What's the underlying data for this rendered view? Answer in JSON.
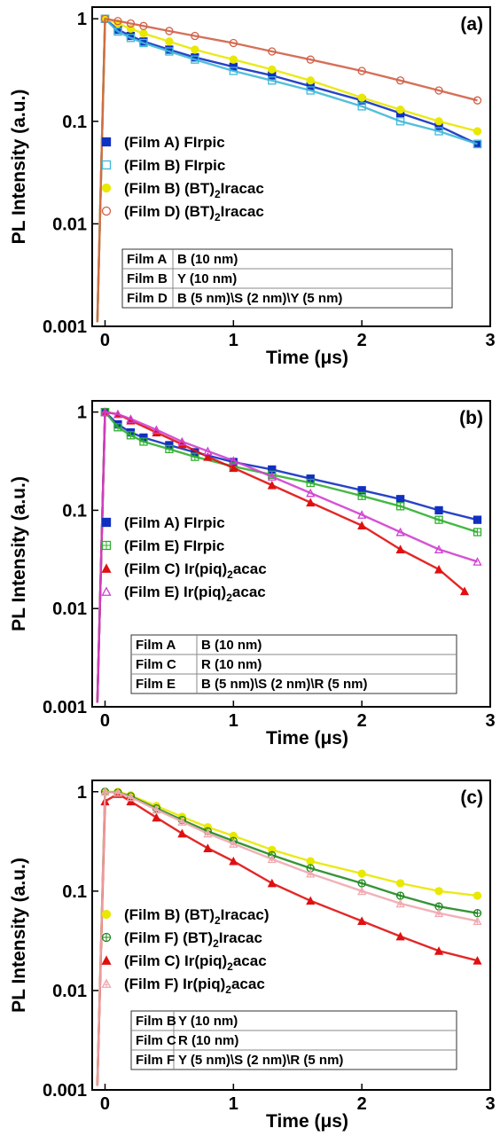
{
  "chart_data": [
    {
      "type": "scatter",
      "panel_label": "(a)",
      "xlabel": "Time (μs)",
      "ylabel": "PL Intensity (a.u.)",
      "xlim": [
        -0.1,
        3.0
      ],
      "ylim": [
        0.001,
        1.3
      ],
      "yscale": "log",
      "xticks": [
        0,
        1,
        2,
        3
      ],
      "xtick_labels": [
        "0",
        "1",
        "2",
        "3"
      ],
      "yticks": [
        1,
        0.1,
        0.01,
        0.001
      ],
      "ytick_labels": [
        "1",
        "0.1",
        "0.01",
        "0.001"
      ],
      "legend": [
        {
          "parts": [
            {
              "t": "(Film A) FIrpic"
            }
          ],
          "color": "#1030c0",
          "marker": "square-filled"
        },
        {
          "parts": [
            {
              "t": "(Film B) FIrpic"
            }
          ],
          "color": "#40b8d8",
          "marker": "square-open"
        },
        {
          "parts": [
            {
              "t": "(Film B) (BT)"
            },
            {
              "t": "2",
              "sub": true
            },
            {
              "t": "Iracac"
            }
          ],
          "color": "#e8e800",
          "marker": "circle-filled"
        },
        {
          "parts": [
            {
              "t": "(Film D) (BT)"
            },
            {
              "t": "2",
              "sub": true
            },
            {
              "t": "Iracac"
            }
          ],
          "color": "#d06048",
          "marker": "circle-open"
        }
      ],
      "table": [
        [
          "Film A",
          "B (10 nm)"
        ],
        [
          "Film B",
          "Y (10 nm)"
        ],
        [
          "Film D",
          "B (5 nm)\\S (2 nm)\\Y (5 nm)"
        ]
      ],
      "series": [
        {
          "marker": "square-filled",
          "color": "#1030c0",
          "x": [
            0.0,
            0.1,
            0.2,
            0.3,
            0.5,
            0.7,
            1.0,
            1.3,
            1.6,
            2.0,
            2.3,
            2.6,
            2.9
          ],
          "values": [
            1.0,
            0.78,
            0.68,
            0.6,
            0.5,
            0.42,
            0.34,
            0.28,
            0.22,
            0.16,
            0.12,
            0.09,
            0.06
          ]
        },
        {
          "marker": "square-open",
          "color": "#40b8d8",
          "x": [
            0.0,
            0.1,
            0.2,
            0.3,
            0.5,
            0.7,
            1.0,
            1.3,
            1.6,
            2.0,
            2.3,
            2.6,
            2.9
          ],
          "values": [
            1.0,
            0.75,
            0.65,
            0.58,
            0.48,
            0.4,
            0.31,
            0.25,
            0.2,
            0.14,
            0.1,
            0.08,
            0.06
          ]
        },
        {
          "marker": "circle-filled",
          "color": "#e8e800",
          "x": [
            0.0,
            0.1,
            0.2,
            0.3,
            0.5,
            0.7,
            1.0,
            1.3,
            1.6,
            2.0,
            2.3,
            2.6,
            2.9
          ],
          "values": [
            1.0,
            0.9,
            0.8,
            0.72,
            0.6,
            0.5,
            0.4,
            0.32,
            0.25,
            0.17,
            0.13,
            0.1,
            0.08
          ]
        },
        {
          "marker": "circle-open",
          "color": "#d06048",
          "x": [
            0.0,
            0.1,
            0.2,
            0.3,
            0.5,
            0.7,
            1.0,
            1.3,
            1.6,
            2.0,
            2.3,
            2.6,
            2.9
          ],
          "values": [
            1.0,
            0.95,
            0.9,
            0.85,
            0.76,
            0.68,
            0.58,
            0.48,
            0.4,
            0.31,
            0.25,
            0.2,
            0.16
          ]
        }
      ]
    },
    {
      "type": "scatter",
      "panel_label": "(b)",
      "xlabel": "Time (μs)",
      "ylabel": "PL Intensity (a.u.)",
      "xlim": [
        -0.1,
        3.0
      ],
      "ylim": [
        0.001,
        1.3
      ],
      "yscale": "log",
      "xticks": [
        0,
        1,
        2,
        3
      ],
      "xtick_labels": [
        "0",
        "1",
        "2",
        "3"
      ],
      "yticks": [
        1,
        0.1,
        0.01,
        0.001
      ],
      "ytick_labels": [
        "1",
        "0.1",
        "0.01",
        "0.001"
      ],
      "legend": [
        {
          "parts": [
            {
              "t": "(Film A) FIrpic"
            }
          ],
          "color": "#1030c0",
          "marker": "square-filled"
        },
        {
          "parts": [
            {
              "t": "(Film E) FIrpic"
            }
          ],
          "color": "#30b030",
          "marker": "square-crossed"
        },
        {
          "parts": [
            {
              "t": "(Film C) Ir(piq)"
            },
            {
              "t": "2",
              "sub": true
            },
            {
              "t": "acac"
            }
          ],
          "color": "#e01010",
          "marker": "triangle-filled"
        },
        {
          "parts": [
            {
              "t": "(Film E) Ir(piq)"
            },
            {
              "t": "2",
              "sub": true
            },
            {
              "t": "acac"
            }
          ],
          "color": "#d040d0",
          "marker": "triangle-open"
        }
      ],
      "table": [
        [
          "Film A",
          "B (10 nm)"
        ],
        [
          "Film C",
          "R (10 nm)"
        ],
        [
          "Film E",
          "B (5 nm)\\S (2 nm)\\R (5 nm)"
        ]
      ],
      "series": [
        {
          "marker": "square-filled",
          "color": "#1030c0",
          "x": [
            0.0,
            0.1,
            0.2,
            0.3,
            0.5,
            0.7,
            1.0,
            1.3,
            1.6,
            2.0,
            2.3,
            2.6,
            2.9
          ],
          "values": [
            1.0,
            0.75,
            0.62,
            0.55,
            0.46,
            0.39,
            0.31,
            0.26,
            0.21,
            0.16,
            0.13,
            0.1,
            0.08
          ]
        },
        {
          "marker": "square-crossed",
          "color": "#30b030",
          "x": [
            0.0,
            0.1,
            0.2,
            0.3,
            0.5,
            0.7,
            1.0,
            1.3,
            1.6,
            2.0,
            2.3,
            2.6,
            2.9
          ],
          "values": [
            1.0,
            0.7,
            0.58,
            0.5,
            0.42,
            0.35,
            0.28,
            0.23,
            0.19,
            0.14,
            0.11,
            0.08,
            0.06
          ]
        },
        {
          "marker": "triangle-filled",
          "color": "#e01010",
          "x": [
            0.0,
            0.1,
            0.2,
            0.4,
            0.6,
            0.8,
            1.0,
            1.3,
            1.6,
            2.0,
            2.3,
            2.6,
            2.8
          ],
          "values": [
            1.0,
            0.95,
            0.82,
            0.62,
            0.47,
            0.35,
            0.27,
            0.18,
            0.12,
            0.07,
            0.04,
            0.025,
            0.015
          ]
        },
        {
          "marker": "triangle-open",
          "color": "#d040d0",
          "x": [
            0.0,
            0.1,
            0.2,
            0.4,
            0.6,
            0.8,
            1.0,
            1.3,
            1.6,
            2.0,
            2.3,
            2.6,
            2.9
          ],
          "values": [
            1.0,
            0.95,
            0.85,
            0.66,
            0.5,
            0.4,
            0.32,
            0.22,
            0.15,
            0.09,
            0.06,
            0.04,
            0.03
          ]
        }
      ]
    },
    {
      "type": "scatter",
      "panel_label": "(c)",
      "xlabel": "Time (μs)",
      "ylabel": "PL Intensity (a.u.)",
      "xlim": [
        -0.1,
        3.0
      ],
      "ylim": [
        0.001,
        1.3
      ],
      "yscale": "log",
      "xticks": [
        0,
        1,
        2,
        3
      ],
      "xtick_labels": [
        "0",
        "1",
        "2",
        "3"
      ],
      "yticks": [
        1,
        0.1,
        0.01,
        0.001
      ],
      "ytick_labels": [
        "1",
        "0.1",
        "0.01",
        "0.001"
      ],
      "legend": [
        {
          "parts": [
            {
              "t": "(Film B) (BT)"
            },
            {
              "t": "2",
              "sub": true
            },
            {
              "t": "Iracac)"
            }
          ],
          "color": "#e8e800",
          "marker": "circle-filled"
        },
        {
          "parts": [
            {
              "t": "(Film F) (BT)"
            },
            {
              "t": "2",
              "sub": true
            },
            {
              "t": "Iracac"
            }
          ],
          "color": "#208820",
          "marker": "circle-crossed"
        },
        {
          "parts": [
            {
              "t": "(Film C) Ir(piq)"
            },
            {
              "t": "2",
              "sub": true
            },
            {
              "t": "acac"
            }
          ],
          "color": "#e01010",
          "marker": "triangle-filled"
        },
        {
          "parts": [
            {
              "t": "(Film F)  Ir(piq)"
            },
            {
              "t": "2",
              "sub": true
            },
            {
              "t": "acac"
            }
          ],
          "color": "#f0a8b0",
          "marker": "triangle-crossed"
        }
      ],
      "table": [
        [
          "Film B",
          "Y (10 nm)"
        ],
        [
          "Film C",
          "R (10 nm)"
        ],
        [
          "Film F",
          "Y (5 nm)\\S (2 nm)\\R (5 nm)"
        ]
      ],
      "series": [
        {
          "marker": "circle-filled",
          "color": "#e8e800",
          "x": [
            0.0,
            0.1,
            0.2,
            0.4,
            0.6,
            0.8,
            1.0,
            1.3,
            1.6,
            2.0,
            2.3,
            2.6,
            2.9
          ],
          "values": [
            1.0,
            1.0,
            0.92,
            0.72,
            0.56,
            0.44,
            0.36,
            0.26,
            0.2,
            0.15,
            0.12,
            0.1,
            0.09
          ]
        },
        {
          "marker": "circle-crossed",
          "color": "#208820",
          "x": [
            0.0,
            0.1,
            0.2,
            0.4,
            0.6,
            0.8,
            1.0,
            1.3,
            1.6,
            2.0,
            2.3,
            2.6,
            2.9
          ],
          "values": [
            1.0,
            0.98,
            0.9,
            0.68,
            0.52,
            0.4,
            0.32,
            0.23,
            0.17,
            0.12,
            0.09,
            0.07,
            0.06
          ]
        },
        {
          "marker": "triangle-filled",
          "color": "#e01010",
          "x": [
            0.0,
            0.1,
            0.2,
            0.4,
            0.6,
            0.8,
            1.0,
            1.3,
            1.6,
            2.0,
            2.3,
            2.6,
            2.9
          ],
          "values": [
            0.8,
            0.95,
            0.8,
            0.55,
            0.38,
            0.27,
            0.2,
            0.12,
            0.08,
            0.05,
            0.035,
            0.025,
            0.02
          ]
        },
        {
          "marker": "triangle-crossed",
          "color": "#f0a8b0",
          "x": [
            0.0,
            0.1,
            0.2,
            0.4,
            0.6,
            0.8,
            1.0,
            1.3,
            1.6,
            2.0,
            2.3,
            2.6,
            2.9
          ],
          "values": [
            1.0,
            0.98,
            0.88,
            0.66,
            0.5,
            0.38,
            0.3,
            0.21,
            0.15,
            0.1,
            0.075,
            0.06,
            0.05
          ]
        }
      ]
    }
  ]
}
